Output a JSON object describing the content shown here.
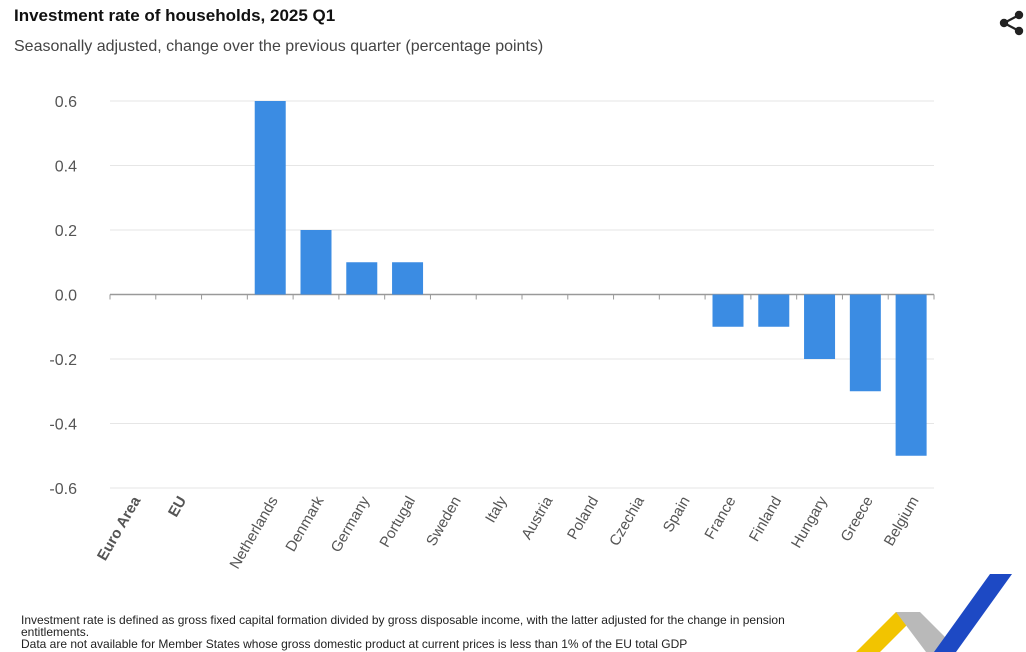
{
  "title": "Investment rate of households, 2025 Q1",
  "subtitle": "Seasonally adjusted, change over the previous quarter (percentage points)",
  "footnote": {
    "line1": "Investment rate is defined as gross fixed capital formation divided by gross disposable income, with the latter adjusted for the change in pension entitlements.",
    "line2": "Data are not available for Member States whose gross domestic product at current prices is less than 1% of the EU total GDP"
  },
  "colors": {
    "bar": "#3b8ce3",
    "grid": "#e6e6e6",
    "axis": "#999999",
    "logo_yellow": "#f2c400",
    "logo_blue": "#1d49c4",
    "logo_grey": "#b9b9b9"
  },
  "icons": {
    "share": "share-icon",
    "logo": "eurostat-logo"
  },
  "chart_data": {
    "type": "bar",
    "title": "Investment rate of households, 2025 Q1",
    "subtitle": "Seasonally adjusted, change over the previous quarter (percentage points)",
    "xlabel": "",
    "ylabel": "",
    "categories": [
      "Euro Area",
      "EU",
      "",
      "Netherlands",
      "Denmark",
      "Germany",
      "Portugal",
      "Sweden",
      "Italy",
      "Austria",
      "Poland",
      "Czechia",
      "Spain",
      "France",
      "Finland",
      "Hungary",
      "Greece",
      "Belgium"
    ],
    "bold_categories": [
      "Euro Area",
      "EU"
    ],
    "values": [
      null,
      null,
      null,
      0.6,
      0.2,
      0.1,
      0.1,
      0.0,
      0.0,
      0.0,
      0.0,
      0.0,
      0.0,
      -0.1,
      -0.1,
      -0.2,
      -0.3,
      -0.5
    ],
    "ylim": [
      -0.6,
      0.6
    ],
    "yticks": [
      "0.6",
      "0.4",
      "0.2",
      "0.0",
      "-0.2",
      "-0.4",
      "-0.6"
    ],
    "grid": true
  }
}
